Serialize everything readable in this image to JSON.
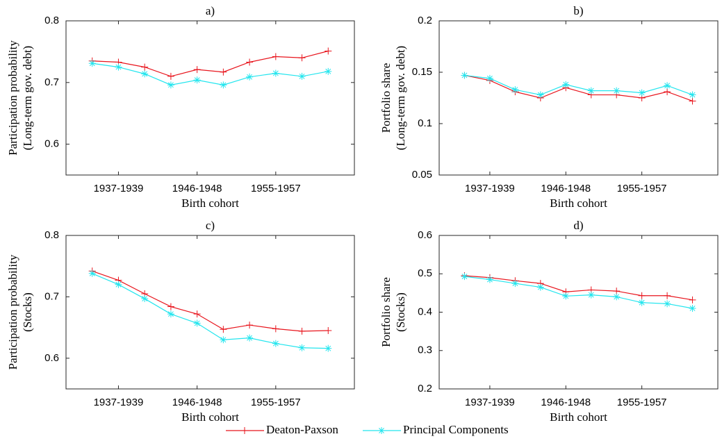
{
  "chart_data": [
    {
      "type": "line",
      "title": "a)",
      "ylabel": [
        "Participation probability",
        "(Long-term gov. debt)"
      ],
      "xlabel": "Birth cohort",
      "categories": [
        null,
        "1937-1939",
        null,
        null,
        "1946-1948",
        null,
        null,
        "1955-1957",
        null,
        null
      ],
      "ylim": [
        0.55,
        0.8
      ],
      "yticks": [
        0.6,
        0.7,
        0.8
      ],
      "series": [
        {
          "name": "Deaton-Paxson",
          "color": "#e8141c",
          "values": [
            0.735,
            0.733,
            0.725,
            0.71,
            0.721,
            0.717,
            0.733,
            0.742,
            0.74,
            0.751
          ]
        },
        {
          "name": "Principal Components",
          "color": "#22e5ee",
          "values": [
            0.731,
            0.725,
            0.714,
            0.696,
            0.704,
            0.696,
            0.709,
            0.715,
            0.71,
            0.718
          ]
        }
      ]
    },
    {
      "type": "line",
      "title": "b)",
      "ylabel": [
        "Portfolio share",
        "(Long-term gov. debt)"
      ],
      "xlabel": "Birth cohort",
      "categories": [
        null,
        "1937-1939",
        null,
        null,
        "1946-1948",
        null,
        null,
        "1955-1957",
        null,
        null
      ],
      "ylim": [
        0.05,
        0.2
      ],
      "yticks": [
        0.05,
        0.1,
        0.15,
        0.2
      ],
      "series": [
        {
          "color": "#e8141c",
          "values": [
            0.147,
            0.142,
            0.131,
            0.125,
            0.135,
            0.128,
            0.128,
            0.125,
            0.131,
            0.122
          ]
        },
        {
          "color": "#22e5ee",
          "values": [
            0.147,
            0.144,
            0.133,
            0.128,
            0.138,
            0.132,
            0.132,
            0.13,
            0.137,
            0.128
          ]
        }
      ]
    },
    {
      "type": "line",
      "title": "c)",
      "ylabel": [
        "Participation probability",
        "(Stocks)"
      ],
      "xlabel": "Birth cohort",
      "categories": [
        null,
        "1937-1939",
        null,
        null,
        "1946-1948",
        null,
        null,
        "1955-1957",
        null,
        null
      ],
      "ylim": [
        0.55,
        0.8
      ],
      "yticks": [
        0.6,
        0.7,
        0.8
      ],
      "series": [
        {
          "color": "#e8141c",
          "values": [
            0.742,
            0.727,
            0.705,
            0.684,
            0.672,
            0.647,
            0.654,
            0.648,
            0.644,
            0.645
          ]
        },
        {
          "color": "#22e5ee",
          "values": [
            0.738,
            0.72,
            0.697,
            0.672,
            0.657,
            0.63,
            0.633,
            0.624,
            0.617,
            0.616
          ]
        }
      ]
    },
    {
      "type": "line",
      "title": "d)",
      "ylabel": [
        "Portfolio share",
        "(Stocks)"
      ],
      "xlabel": "Birth cohort",
      "categories": [
        null,
        "1937-1939",
        null,
        null,
        "1946-1948",
        null,
        null,
        "1955-1957",
        null,
        null
      ],
      "ylim": [
        0.2,
        0.6
      ],
      "yticks": [
        0.2,
        0.3,
        0.4,
        0.5,
        0.6
      ],
      "series": [
        {
          "color": "#e8141c",
          "values": [
            0.495,
            0.49,
            0.482,
            0.475,
            0.453,
            0.458,
            0.455,
            0.443,
            0.443,
            0.432
          ]
        },
        {
          "color": "#22e5ee",
          "values": [
            0.493,
            0.485,
            0.475,
            0.465,
            0.442,
            0.445,
            0.44,
            0.425,
            0.422,
            0.41
          ]
        }
      ]
    }
  ]
}
